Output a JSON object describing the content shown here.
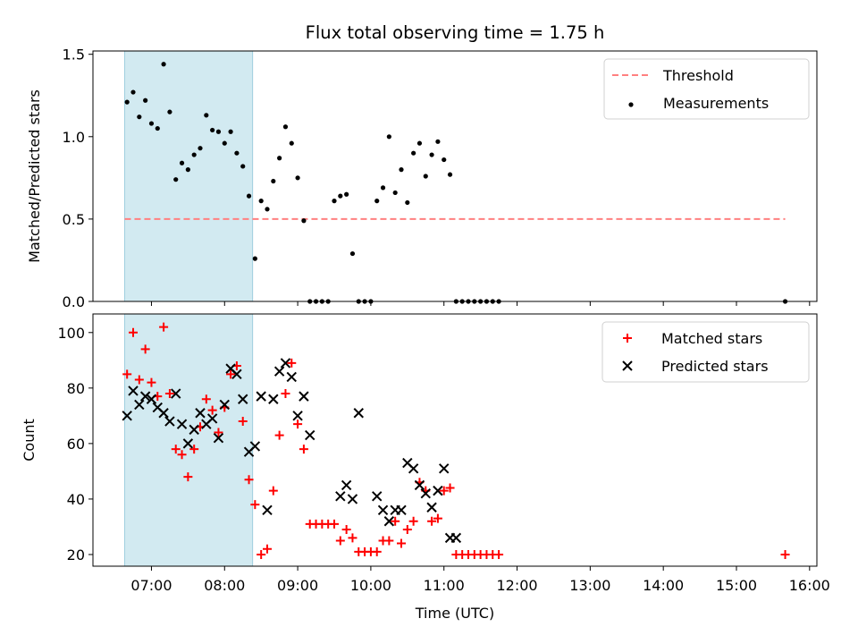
{
  "chart_data": [
    {
      "type": "scatter",
      "title": "Flux total observing time = 1.75 h",
      "ylabel": "Matched/Predicted stars",
      "xlabel": "",
      "ylim": [
        0,
        1.52
      ],
      "xlim_hours": [
        6.2,
        16.1
      ],
      "yticks": [
        0.0,
        0.5,
        1.0,
        1.5
      ],
      "ytick_labels": [
        "0.0",
        "0.5",
        "1.0",
        "1.5"
      ],
      "shaded_region": {
        "start": "06:38",
        "end": "08:23",
        "color": "#add8e6"
      },
      "threshold": {
        "name": "Threshold",
        "value": 0.5,
        "start": "06:38",
        "end": "15:40",
        "color": "#ff8080"
      },
      "legend": [
        "Threshold",
        "Measurements"
      ],
      "legend_position": "upper right",
      "series": [
        {
          "name": "Measurements",
          "color": "#000000",
          "x": [
            "06:40",
            "06:45",
            "06:50",
            "06:55",
            "07:00",
            "07:05",
            "07:10",
            "07:15",
            "07:20",
            "07:25",
            "07:30",
            "07:35",
            "07:40",
            "07:45",
            "07:50",
            "07:55",
            "08:00",
            "08:05",
            "08:10",
            "08:15",
            "08:20",
            "08:25",
            "08:30",
            "08:35",
            "08:40",
            "08:45",
            "08:50",
            "08:55",
            "09:00",
            "09:05",
            "09:10",
            "09:15",
            "09:20",
            "09:25",
            "09:30",
            "09:35",
            "09:40",
            "09:45",
            "09:50",
            "09:55",
            "10:00",
            "10:05",
            "10:10",
            "10:15",
            "10:20",
            "10:25",
            "10:30",
            "10:35",
            "10:40",
            "10:45",
            "10:50",
            "10:55",
            "11:00",
            "11:05",
            "11:10",
            "11:15",
            "11:20",
            "11:25",
            "11:30",
            "11:35",
            "11:40",
            "11:45",
            "15:40"
          ],
          "y": [
            1.21,
            1.27,
            1.12,
            1.22,
            1.08,
            1.05,
            1.44,
            1.15,
            0.74,
            0.84,
            0.8,
            0.89,
            0.93,
            1.13,
            1.04,
            1.03,
            0.96,
            1.03,
            0.9,
            0.82,
            0.64,
            0.26,
            0.61,
            0.56,
            0.73,
            0.87,
            1.06,
            0.96,
            0.75,
            0.49,
            0.0,
            0.0,
            0.0,
            0.0,
            0.61,
            0.64,
            0.65,
            0.29,
            0.0,
            0.0,
            0.0,
            0.61,
            0.69,
            1.0,
            0.66,
            0.8,
            0.6,
            0.9,
            0.96,
            0.76,
            0.89,
            0.97,
            0.86,
            0.77,
            0.0,
            0.0,
            0.0,
            0.0,
            0.0,
            0.0,
            0.0,
            0.0,
            0.0
          ]
        }
      ]
    },
    {
      "type": "scatter",
      "title": "",
      "ylabel": "Count",
      "xlabel": "Time (UTC)",
      "ylim": [
        15.8,
        106.7
      ],
      "xlim_hours": [
        6.2,
        16.1
      ],
      "yticks": [
        20,
        40,
        60,
        80,
        100
      ],
      "ytick_labels": [
        "20",
        "40",
        "60",
        "80",
        "100"
      ],
      "xticks": [
        "07:00",
        "08:00",
        "09:00",
        "10:00",
        "11:00",
        "12:00",
        "13:00",
        "14:00",
        "15:00",
        "16:00"
      ],
      "shaded_region": {
        "start": "06:38",
        "end": "08:23",
        "color": "#add8e6"
      },
      "legend": [
        "Matched stars",
        "Predicted stars"
      ],
      "legend_position": "upper right",
      "series": [
        {
          "name": "Matched stars",
          "marker": "plus",
          "color": "#ff0000",
          "x": [
            "06:40",
            "06:45",
            "06:50",
            "06:55",
            "07:00",
            "07:05",
            "07:10",
            "07:15",
            "07:20",
            "07:25",
            "07:30",
            "07:35",
            "07:40",
            "07:45",
            "07:50",
            "07:55",
            "08:00",
            "08:05",
            "08:10",
            "08:15",
            "08:20",
            "08:25",
            "08:30",
            "08:35",
            "08:40",
            "08:45",
            "08:50",
            "08:55",
            "09:00",
            "09:05",
            "09:10",
            "09:15",
            "09:20",
            "09:25",
            "09:30",
            "09:35",
            "09:40",
            "09:45",
            "09:50",
            "09:55",
            "10:00",
            "10:05",
            "10:10",
            "10:15",
            "10:20",
            "10:25",
            "10:30",
            "10:35",
            "10:40",
            "10:45",
            "10:50",
            "10:55",
            "11:00",
            "11:05",
            "11:10",
            "11:15",
            "11:20",
            "11:25",
            "11:30",
            "11:35",
            "11:40",
            "11:45",
            "15:40"
          ],
          "y": [
            85,
            100,
            83,
            94,
            82,
            77,
            102,
            78,
            58,
            56,
            48,
            58,
            66,
            76,
            72,
            64,
            73,
            85,
            88,
            68,
            47,
            38,
            20,
            22,
            43,
            63,
            78,
            89,
            67,
            58,
            31,
            31,
            31,
            31,
            31,
            25,
            29,
            26,
            21,
            21,
            21,
            21,
            25,
            25,
            32,
            24,
            29,
            32,
            46,
            43,
            32,
            33,
            43,
            44,
            20,
            20,
            20,
            20,
            20,
            20,
            20,
            20,
            20
          ]
        },
        {
          "name": "Predicted stars",
          "marker": "x",
          "color": "#000000",
          "x": [
            "06:40",
            "06:45",
            "06:50",
            "06:55",
            "07:00",
            "07:05",
            "07:10",
            "07:15",
            "07:20",
            "07:25",
            "07:30",
            "07:35",
            "07:40",
            "07:45",
            "07:50",
            "07:55",
            "08:00",
            "08:05",
            "08:10",
            "08:15",
            "08:20",
            "08:25",
            "08:30",
            "08:35",
            "08:40",
            "08:45",
            "08:50",
            "08:55",
            "09:00",
            "09:05",
            "09:10",
            "09:35",
            "09:40",
            "09:45",
            "09:50",
            "10:05",
            "10:10",
            "10:15",
            "10:20",
            "10:25",
            "10:30",
            "10:35",
            "10:40",
            "10:45",
            "10:50",
            "10:55",
            "11:00",
            "11:05",
            "11:10"
          ],
          "y": [
            70,
            79,
            74,
            77,
            76,
            73,
            71,
            68,
            78,
            67,
            60,
            65,
            71,
            67,
            69,
            62,
            74,
            87,
            85,
            76,
            57,
            59,
            77,
            36,
            76,
            86,
            89,
            84,
            70,
            77,
            63,
            41,
            45,
            40,
            71,
            41,
            36,
            32,
            36,
            36,
            53,
            51,
            45,
            42,
            37,
            43,
            51,
            26,
            26
          ]
        }
      ]
    }
  ]
}
